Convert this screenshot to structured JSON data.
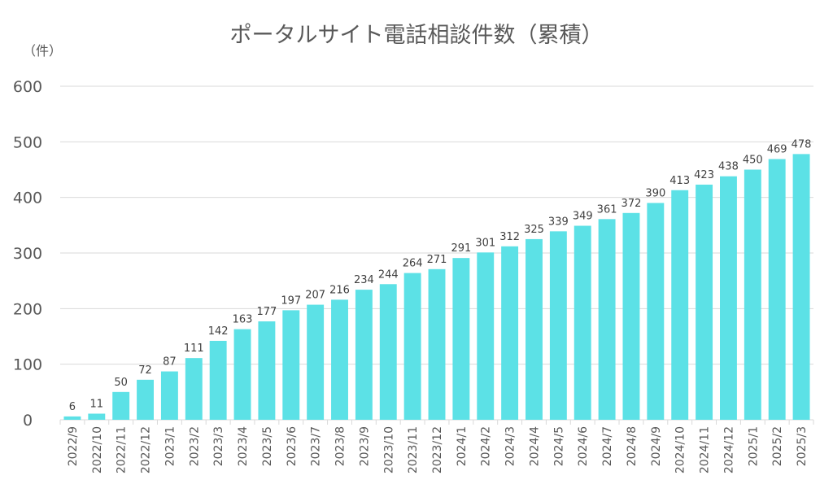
{
  "chart_data": {
    "type": "bar",
    "title": "ポータルサイト電話相談件数（累積）",
    "unit_label": "（件）",
    "xlabel": "",
    "ylabel": "",
    "ylim": [
      0,
      600
    ],
    "yticks": [
      0,
      100,
      200,
      300,
      400,
      500,
      600
    ],
    "grid": true,
    "bar_color": "#5CE1E6",
    "categories": [
      "2022/9",
      "2022/10",
      "2022/11",
      "2022/12",
      "2023/1",
      "2023/2",
      "2023/3",
      "2023/4",
      "2023/5",
      "2023/6",
      "2023/7",
      "2023/8",
      "2023/9",
      "2023/10",
      "2023/11",
      "2023/12",
      "2024/1",
      "2024/2",
      "2024/3",
      "2024/4",
      "2024/5",
      "2024/6",
      "2024/7",
      "2024/8",
      "2024/9",
      "2024/10",
      "2024/11",
      "2024/12",
      "2025/1",
      "2025/2",
      "2025/3"
    ],
    "values": [
      6,
      11,
      50,
      72,
      87,
      111,
      142,
      163,
      177,
      197,
      207,
      216,
      234,
      244,
      264,
      271,
      291,
      301,
      312,
      325,
      339,
      349,
      361,
      372,
      390,
      413,
      423,
      438,
      450,
      469,
      478
    ]
  }
}
